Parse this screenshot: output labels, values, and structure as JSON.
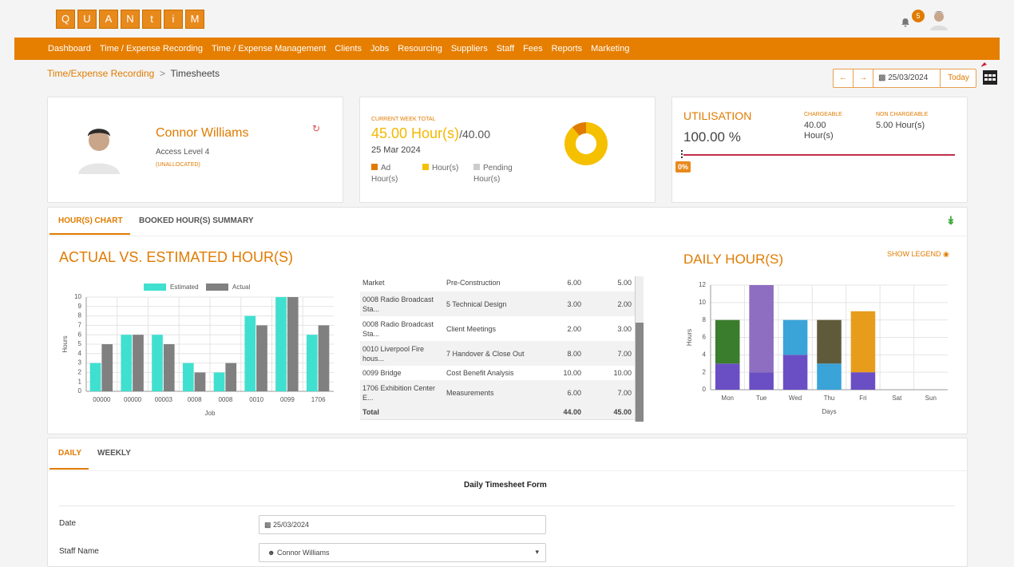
{
  "header": {
    "logo": [
      "Q",
      "U",
      "A",
      "N",
      "t",
      "i",
      "M"
    ],
    "notifications": "5"
  },
  "nav": [
    "Dashboard",
    "Time / Expense Recording",
    "Time / Expense Management",
    "Clients",
    "Jobs",
    "Resourcing",
    "Suppliers",
    "Staff",
    "Fees",
    "Reports",
    "Marketing"
  ],
  "breadcrumb": [
    "Time/Expense Recording",
    "Timesheets"
  ],
  "date_nav": {
    "date": "25/03/2024",
    "today": "Today"
  },
  "profile": {
    "name": "Connor Williams",
    "level": "Access Level 4",
    "status": "(UNALLOCATED)"
  },
  "week": {
    "label": "CURRENT WEEK TOTAL",
    "total": "45.00 Hour(s)",
    "target": "/40.00",
    "date": "25 Mar 2024"
  },
  "utilisation": {
    "title": "UTILISATION",
    "value": "100.00 %",
    "chargeable_label": "CHARGEABLE",
    "chargeable": "40.00 Hour(s)",
    "non_chargeable_label": "NON CHARGEABLE",
    "non_chargeable": "5.00 Hour(s)",
    "marker": "0%"
  },
  "tabs": [
    "HOUR(S) CHART",
    "BOOKED HOUR(S) SUMMARY"
  ],
  "actual_title": "ACTUAL VS. ESTIMATED HOUR(S)",
  "summary_table": {
    "rows": [
      [
        "Market",
        "Pre-Construction",
        "6.00",
        "5.00"
      ],
      [
        "0008 Radio Broadcast Sta...",
        "5 Technical Design",
        "3.00",
        "2.00"
      ],
      [
        "0008 Radio Broadcast Sta...",
        "Client Meetings",
        "2.00",
        "3.00"
      ],
      [
        "0010 Liverpool Fire hous...",
        "7 Handover & Close Out",
        "8.00",
        "7.00"
      ],
      [
        "0099 Bridge",
        "Cost Benefit Analysis",
        "10.00",
        "10.00"
      ],
      [
        "1706 Exhibition Center E...",
        "Measurements",
        "6.00",
        "7.00"
      ]
    ],
    "total": [
      "Total",
      "44.00",
      "45.00"
    ]
  },
  "daily_title": "DAILY HOUR(S)",
  "show_legend": "SHOW LEGEND",
  "chart_data": [
    {
      "type": "pie",
      "labels": [
        "Ad Hour(s)",
        "Hour(s)",
        "Pending Hour(s)"
      ],
      "values": [
        5,
        40,
        0
      ],
      "colors": [
        "#e07b00",
        "#f5c000",
        "#cccccc"
      ]
    },
    {
      "type": "bar",
      "categories": [
        "00000",
        "00000",
        "00003",
        "0008",
        "0008",
        "0010",
        "0099",
        "1706"
      ],
      "series": [
        {
          "name": "Estimated",
          "color": "#40e0d0",
          "values": [
            3,
            6,
            6,
            3,
            2,
            8,
            10,
            6
          ]
        },
        {
          "name": "Actual",
          "color": "#808080",
          "values": [
            5,
            6,
            5,
            2,
            3,
            7,
            10,
            7
          ]
        }
      ],
      "ylim": [
        0,
        10
      ],
      "yticks": [
        0,
        1,
        2,
        3,
        4,
        5,
        6,
        7,
        8,
        9,
        10
      ],
      "xlabel": "Job",
      "ylabel": "Hours",
      "grid": true
    },
    {
      "type": "stacked_bar",
      "categories": [
        "Mon",
        "Tue",
        "Wed",
        "Thu",
        "Fri",
        "Sat",
        "Sun"
      ],
      "series": [
        {
          "color": "#6a4fc4",
          "values": [
            3,
            2,
            4,
            0,
            2,
            0,
            0
          ]
        },
        {
          "color": "#3a7d2c",
          "values": [
            5,
            0,
            0,
            0,
            0,
            0,
            0
          ]
        },
        {
          "color": "#8e6ec0",
          "values": [
            0,
            10,
            0,
            0,
            0,
            0,
            0
          ]
        },
        {
          "color": "#3aa3d8",
          "values": [
            0,
            0,
            4,
            3,
            0,
            0,
            0
          ]
        },
        {
          "color": "#5f5a3a",
          "values": [
            0,
            0,
            0,
            5,
            0,
            0,
            0
          ]
        },
        {
          "color": "#e89c1c",
          "values": [
            0,
            0,
            0,
            0,
            7,
            0,
            0
          ]
        }
      ],
      "ylim": [
        0,
        12
      ],
      "yticks": [
        0,
        2,
        4,
        6,
        8,
        10,
        12
      ],
      "xlabel": "Days",
      "ylabel": "Hours",
      "grid": true
    }
  ],
  "form": {
    "tabs": [
      "DAILY",
      "WEEKLY"
    ],
    "title": "Daily Timesheet Form",
    "fields": [
      {
        "label": "Date",
        "value": "25/03/2024"
      },
      {
        "label": "Staff Name",
        "value": "Connor Williams"
      }
    ]
  }
}
